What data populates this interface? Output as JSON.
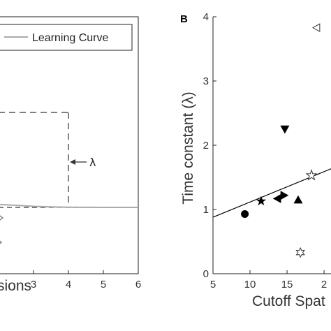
{
  "chart_data": [
    {
      "type": "line",
      "panel": "A",
      "xlabel": "sions",
      "ylabel": "",
      "xlim": [
        2.0,
        6.0
      ],
      "x_ticks": [
        "3",
        "4",
        "5",
        "6"
      ],
      "legend": {
        "entries": [
          "Learning Curve"
        ],
        "placement": "top-right"
      },
      "series": [
        {
          "name": "Learning Curve",
          "color": "#aaaaaa",
          "x": [
            2.0,
            2.5,
            3.0,
            3.5,
            4.0,
            4.5,
            5.0,
            5.5,
            6.0
          ],
          "y": [
            1.05,
            1.035,
            1.018,
            1.008,
            1.003,
            1.001,
            1.0,
            1.0,
            1.0
          ]
        }
      ],
      "annotation": {
        "text": "λ",
        "x": 4.0,
        "y_top": 2.6,
        "y_bottom": 1.0,
        "style": "dashed"
      },
      "markers_cut_off": [
        "star-outline"
      ]
    },
    {
      "type": "scatter",
      "panel": "B",
      "panel_letter": "B",
      "xlabel": "Cutoff Spat",
      "ylabel": "Time constant  (λ)",
      "xlim": [
        5,
        21.5
      ],
      "ylim": [
        0,
        4
      ],
      "x_ticks": [
        "5",
        "10",
        "15",
        "2"
      ],
      "y_ticks": [
        "0",
        "1",
        "2",
        "3",
        "4"
      ],
      "points": [
        {
          "x": 9.3,
          "y": 0.93,
          "marker": "circle-filled"
        },
        {
          "x": 11.5,
          "y": 1.13,
          "marker": "star-filled"
        },
        {
          "x": 13.7,
          "y": 1.17,
          "marker": "triangle-left-filled"
        },
        {
          "x": 14.6,
          "y": 1.22,
          "marker": "triangle-right-filled"
        },
        {
          "x": 14.7,
          "y": 2.25,
          "marker": "triangle-down-filled"
        },
        {
          "x": 16.5,
          "y": 1.15,
          "marker": "triangle-up-filled"
        },
        {
          "x": 16.8,
          "y": 0.33,
          "marker": "hexagram-outline"
        },
        {
          "x": 18.3,
          "y": 1.53,
          "marker": "star-outline"
        },
        {
          "x": 19.0,
          "y": 3.83,
          "marker": "triangle-left-outline"
        }
      ],
      "fit_line": {
        "x": [
          5,
          21.5
        ],
        "y": [
          0.88,
          1.66
        ]
      }
    }
  ]
}
